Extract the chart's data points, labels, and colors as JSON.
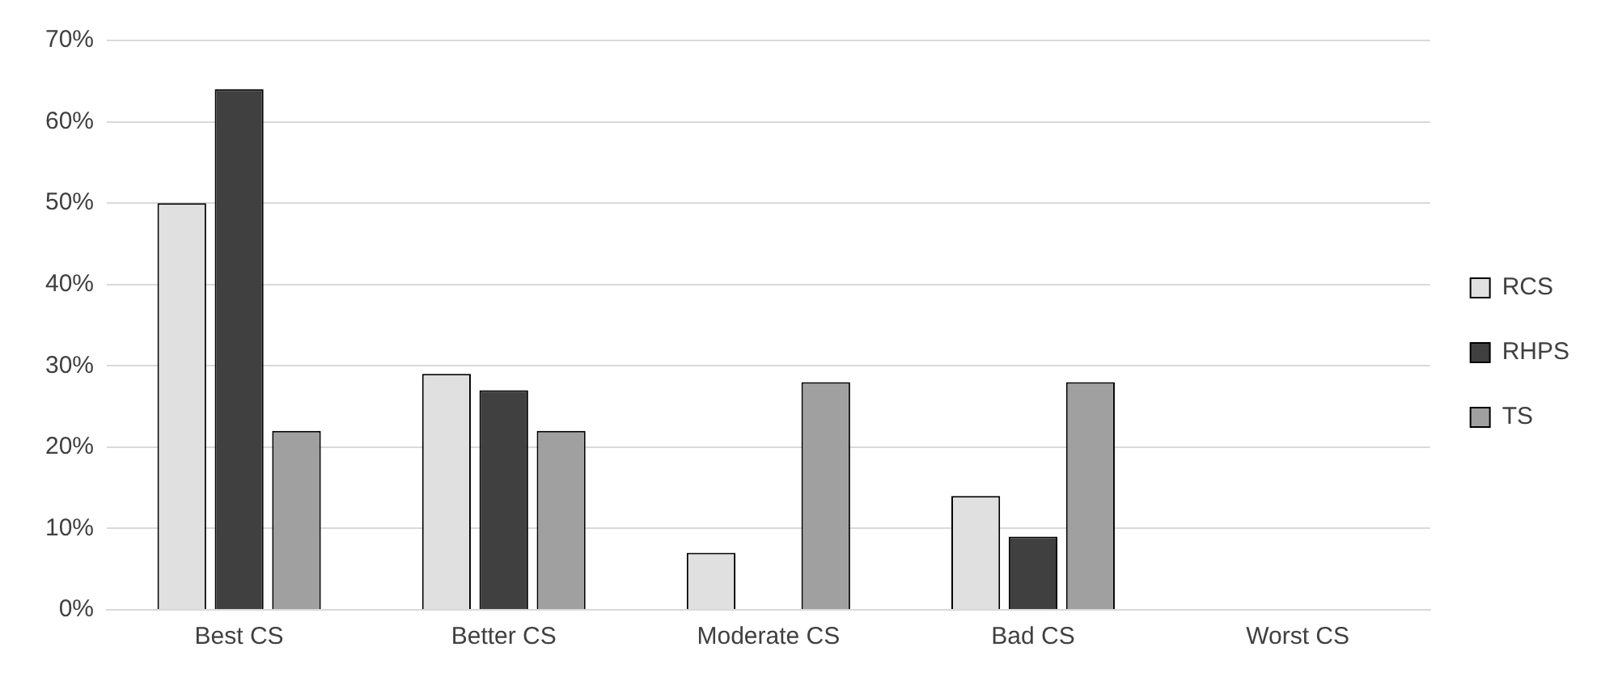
{
  "chart_data": {
    "type": "bar",
    "categories": [
      "Best CS",
      "Better CS",
      "Moderate CS",
      "Bad CS",
      "Worst CS"
    ],
    "series": [
      {
        "name": "RCS",
        "color": "#e0e0e0",
        "values": [
          50,
          29,
          7,
          14,
          0
        ]
      },
      {
        "name": "RHPS",
        "color": "#404040",
        "values": [
          64,
          27,
          0,
          9,
          0
        ]
      },
      {
        "name": "TS",
        "color": "#a0a0a0",
        "values": [
          22,
          22,
          28,
          28,
          0
        ]
      }
    ],
    "ylim": [
      0,
      70
    ],
    "yticks": [
      {
        "value": 0,
        "label": "0%"
      },
      {
        "value": 10,
        "label": "10%"
      },
      {
        "value": 20,
        "label": "20%"
      },
      {
        "value": 30,
        "label": "30%"
      },
      {
        "value": 40,
        "label": "40%"
      },
      {
        "value": 50,
        "label": "50%"
      },
      {
        "value": 60,
        "label": "60%"
      },
      {
        "value": 70,
        "label": "70%"
      }
    ],
    "grid": "y",
    "legend": "right"
  }
}
